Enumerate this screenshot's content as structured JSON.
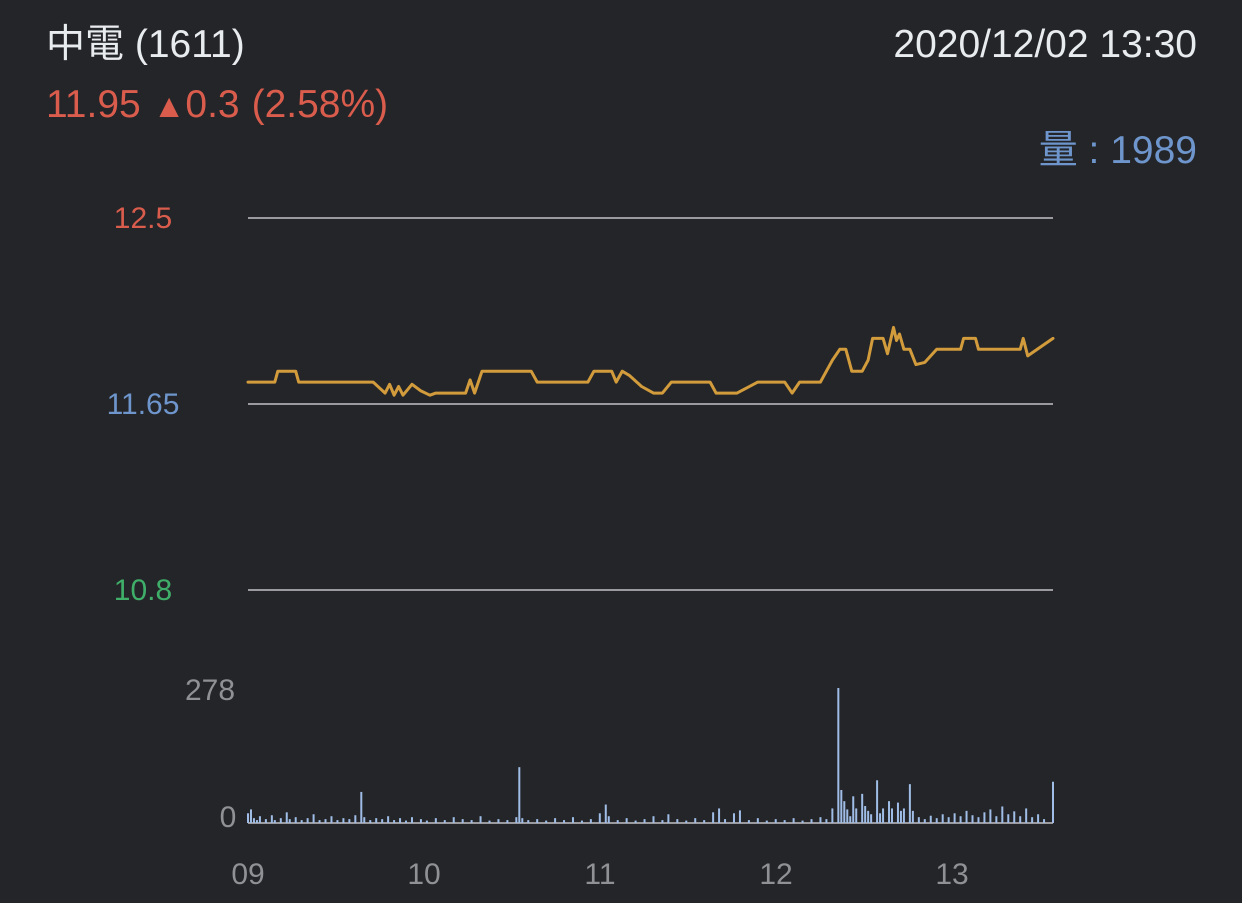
{
  "header": {
    "title": "中電 (1611)",
    "datetime": "2020/12/02 13:30",
    "price": "11.95",
    "change_arrow": "▲",
    "change": "0.3",
    "change_pct": "(2.58%)",
    "volume_label": "量",
    "volume_sep": " : ",
    "volume_value": "1989"
  },
  "colors": {
    "background": "#242528",
    "title_text": "#e9ecef",
    "up_red": "#d95c4c",
    "ref_blue": "#6e96cd",
    "down_green": "#3fae69",
    "price_line": "#d29c3c",
    "volume_bar": "#9fbde6",
    "gridline": "#9b9b9f",
    "axis_gray": "#8f9195"
  },
  "chart_data": {
    "type": "line",
    "title": "",
    "xlabel": "",
    "ylabel": "",
    "grid": "three horizontal reference lines",
    "legend": "none",
    "x_axis": {
      "ticks": [
        "09",
        "10",
        "11",
        "12",
        "13"
      ],
      "session": "09:00-13:30",
      "total_minutes": 270
    },
    "price_axis": {
      "ylim": [
        10.8,
        12.5
      ],
      "levels": [
        {
          "value": 12.5,
          "label": "12.5",
          "color": "#d95c4c",
          "role": "upper"
        },
        {
          "value": 11.65,
          "label": "11.65",
          "color": "#6e96cd",
          "role": "previous-close"
        },
        {
          "value": 10.8,
          "label": "10.8",
          "color": "#3fae69",
          "role": "lower"
        }
      ]
    },
    "volume_axis": {
      "max": 278,
      "max_label": "278",
      "zero_label": "0"
    },
    "price_series": {
      "name": "price",
      "color": "#d29c3c",
      "points": [
        [
          0,
          11.75
        ],
        [
          9,
          11.75
        ],
        [
          10,
          11.8
        ],
        [
          16,
          11.8
        ],
        [
          17,
          11.75
        ],
        [
          42,
          11.75
        ],
        [
          46,
          11.7
        ],
        [
          47.5,
          11.74
        ],
        [
          49,
          11.69
        ],
        [
          50.5,
          11.73
        ],
        [
          52,
          11.69
        ],
        [
          55,
          11.74
        ],
        [
          58,
          11.71
        ],
        [
          61,
          11.69
        ],
        [
          63,
          11.7
        ],
        [
          73,
          11.7
        ],
        [
          74.5,
          11.76
        ],
        [
          76,
          11.7
        ],
        [
          78.5,
          11.8
        ],
        [
          95,
          11.8
        ],
        [
          97,
          11.75
        ],
        [
          114,
          11.75
        ],
        [
          116,
          11.8
        ],
        [
          122,
          11.8
        ],
        [
          123.5,
          11.75
        ],
        [
          125.5,
          11.8
        ],
        [
          128,
          11.78
        ],
        [
          132,
          11.73
        ],
        [
          136,
          11.7
        ],
        [
          139,
          11.7
        ],
        [
          142,
          11.75
        ],
        [
          155,
          11.75
        ],
        [
          157,
          11.7
        ],
        [
          164,
          11.7
        ],
        [
          171,
          11.75
        ],
        [
          180,
          11.75
        ],
        [
          182.5,
          11.7
        ],
        [
          185,
          11.75
        ],
        [
          192,
          11.75
        ],
        [
          196,
          11.85
        ],
        [
          198.5,
          11.9
        ],
        [
          200.5,
          11.9
        ],
        [
          201.5,
          11.85
        ],
        [
          202.5,
          11.8
        ],
        [
          206,
          11.8
        ],
        [
          208,
          11.85
        ],
        [
          209.5,
          11.95
        ],
        [
          213,
          11.95
        ],
        [
          214.5,
          11.88
        ],
        [
          216.5,
          12.0
        ],
        [
          217.5,
          11.94
        ],
        [
          218.5,
          11.97
        ],
        [
          220,
          11.9
        ],
        [
          222,
          11.9
        ],
        [
          224,
          11.83
        ],
        [
          227,
          11.84
        ],
        [
          231,
          11.9
        ],
        [
          239,
          11.9
        ],
        [
          240,
          11.95
        ],
        [
          244,
          11.95
        ],
        [
          245,
          11.9
        ],
        [
          259,
          11.9
        ],
        [
          260,
          11.95
        ],
        [
          261.5,
          11.87
        ],
        [
          270,
          11.95
        ]
      ]
    },
    "volume_series": {
      "name": "volume",
      "color": "#9fbde6",
      "bars": [
        [
          0,
          20
        ],
        [
          1,
          28
        ],
        [
          2,
          10
        ],
        [
          3,
          6
        ],
        [
          4,
          14
        ],
        [
          6,
          8
        ],
        [
          8,
          16
        ],
        [
          9,
          6
        ],
        [
          11,
          10
        ],
        [
          13,
          22
        ],
        [
          14,
          8
        ],
        [
          16,
          12
        ],
        [
          18,
          6
        ],
        [
          20,
          10
        ],
        [
          22,
          18
        ],
        [
          24,
          6
        ],
        [
          26,
          8
        ],
        [
          28,
          14
        ],
        [
          30,
          6
        ],
        [
          32,
          10
        ],
        [
          34,
          8
        ],
        [
          36,
          16
        ],
        [
          38,
          64
        ],
        [
          39,
          12
        ],
        [
          41,
          6
        ],
        [
          43,
          10
        ],
        [
          45,
          8
        ],
        [
          47,
          14
        ],
        [
          49,
          6
        ],
        [
          51,
          10
        ],
        [
          53,
          5
        ],
        [
          55,
          12
        ],
        [
          58,
          8
        ],
        [
          60,
          5
        ],
        [
          63,
          10
        ],
        [
          66,
          6
        ],
        [
          69,
          12
        ],
        [
          72,
          8
        ],
        [
          75,
          6
        ],
        [
          78,
          14
        ],
        [
          81,
          5
        ],
        [
          84,
          8
        ],
        [
          87,
          6
        ],
        [
          90,
          12
        ],
        [
          91,
          115
        ],
        [
          92,
          10
        ],
        [
          94,
          6
        ],
        [
          97,
          8
        ],
        [
          100,
          5
        ],
        [
          103,
          10
        ],
        [
          106,
          6
        ],
        [
          109,
          12
        ],
        [
          112,
          5
        ],
        [
          115,
          8
        ],
        [
          118,
          20
        ],
        [
          120,
          38
        ],
        [
          121,
          14
        ],
        [
          124,
          6
        ],
        [
          127,
          10
        ],
        [
          130,
          5
        ],
        [
          133,
          8
        ],
        [
          136,
          14
        ],
        [
          139,
          6
        ],
        [
          141,
          18
        ],
        [
          144,
          8
        ],
        [
          147,
          5
        ],
        [
          150,
          10
        ],
        [
          153,
          6
        ],
        [
          156,
          22
        ],
        [
          158,
          30
        ],
        [
          160,
          8
        ],
        [
          163,
          20
        ],
        [
          165,
          26
        ],
        [
          168,
          6
        ],
        [
          171,
          10
        ],
        [
          174,
          5
        ],
        [
          177,
          8
        ],
        [
          180,
          6
        ],
        [
          183,
          10
        ],
        [
          186,
          5
        ],
        [
          189,
          8
        ],
        [
          192,
          12
        ],
        [
          194,
          8
        ],
        [
          196,
          30
        ],
        [
          198,
          278
        ],
        [
          199,
          68
        ],
        [
          200,
          45
        ],
        [
          201,
          28
        ],
        [
          202,
          14
        ],
        [
          203,
          55
        ],
        [
          204,
          30
        ],
        [
          206,
          60
        ],
        [
          207,
          35
        ],
        [
          208,
          25
        ],
        [
          209,
          18
        ],
        [
          211,
          88
        ],
        [
          212,
          20
        ],
        [
          213,
          30
        ],
        [
          215,
          45
        ],
        [
          216,
          30
        ],
        [
          218,
          42
        ],
        [
          219,
          25
        ],
        [
          220,
          30
        ],
        [
          222,
          80
        ],
        [
          223,
          25
        ],
        [
          225,
          12
        ],
        [
          227,
          8
        ],
        [
          229,
          15
        ],
        [
          231,
          10
        ],
        [
          233,
          18
        ],
        [
          235,
          12
        ],
        [
          237,
          20
        ],
        [
          239,
          14
        ],
        [
          241,
          25
        ],
        [
          243,
          16
        ],
        [
          245,
          12
        ],
        [
          247,
          22
        ],
        [
          249,
          28
        ],
        [
          251,
          14
        ],
        [
          253,
          34
        ],
        [
          255,
          18
        ],
        [
          257,
          24
        ],
        [
          259,
          14
        ],
        [
          261,
          30
        ],
        [
          263,
          12
        ],
        [
          265,
          18
        ],
        [
          267,
          8
        ],
        [
          270,
          85
        ]
      ]
    }
  }
}
